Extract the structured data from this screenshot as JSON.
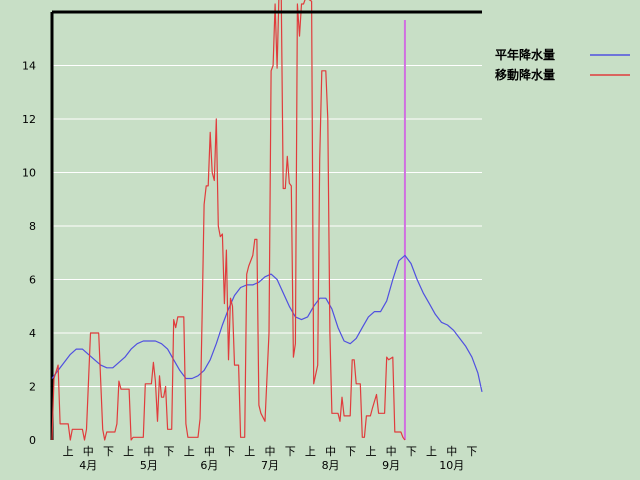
{
  "chart_data": {
    "type": "line",
    "title": "",
    "xlabel": "",
    "ylabel": "",
    "ylim": [
      0,
      16
    ],
    "y_ticks": [
      "0",
      "2",
      "4",
      "6",
      "8",
      "10",
      "12",
      "14"
    ],
    "y_tick_values": [
      0,
      2,
      4,
      6,
      8,
      10,
      12,
      14
    ],
    "grid": true,
    "legend_position": "top-right",
    "x_period_ticks": [
      "上",
      "中",
      "下",
      "上",
      "中",
      "下",
      "上",
      "中",
      "下",
      "上",
      "中",
      "下",
      "上",
      "中",
      "下",
      "上",
      "中",
      "下",
      "上",
      "中",
      "下"
    ],
    "x_month_labels": [
      "4月",
      "5月",
      "6月",
      "7月",
      "8月",
      "9月",
      "10月"
    ],
    "x_range_days": [
      0,
      212
    ],
    "series": [
      {
        "name": "平年降水量",
        "color": "#5050e0",
        "points": [
          [
            0,
            2.3
          ],
          [
            3,
            2.6
          ],
          [
            6,
            2.9
          ],
          [
            9,
            3.2
          ],
          [
            12,
            3.4
          ],
          [
            15,
            3.4
          ],
          [
            18,
            3.2
          ],
          [
            21,
            3.0
          ],
          [
            24,
            2.8
          ],
          [
            27,
            2.7
          ],
          [
            30,
            2.7
          ],
          [
            33,
            2.9
          ],
          [
            36,
            3.1
          ],
          [
            39,
            3.4
          ],
          [
            42,
            3.6
          ],
          [
            45,
            3.7
          ],
          [
            48,
            3.7
          ],
          [
            51,
            3.7
          ],
          [
            54,
            3.6
          ],
          [
            57,
            3.4
          ],
          [
            60,
            3.0
          ],
          [
            63,
            2.6
          ],
          [
            66,
            2.3
          ],
          [
            69,
            2.3
          ],
          [
            72,
            2.4
          ],
          [
            75,
            2.6
          ],
          [
            78,
            3.0
          ],
          [
            81,
            3.6
          ],
          [
            84,
            4.3
          ],
          [
            87,
            4.9
          ],
          [
            90,
            5.4
          ],
          [
            93,
            5.7
          ],
          [
            96,
            5.8
          ],
          [
            99,
            5.8
          ],
          [
            102,
            5.9
          ],
          [
            105,
            6.1
          ],
          [
            108,
            6.2
          ],
          [
            111,
            6.0
          ],
          [
            114,
            5.5
          ],
          [
            117,
            5.0
          ],
          [
            120,
            4.6
          ],
          [
            123,
            4.5
          ],
          [
            126,
            4.6
          ],
          [
            129,
            5.0
          ],
          [
            132,
            5.3
          ],
          [
            135,
            5.3
          ],
          [
            138,
            4.9
          ],
          [
            141,
            4.2
          ],
          [
            144,
            3.7
          ],
          [
            147,
            3.6
          ],
          [
            150,
            3.8
          ],
          [
            153,
            4.2
          ],
          [
            156,
            4.6
          ],
          [
            159,
            4.8
          ],
          [
            162,
            4.8
          ],
          [
            165,
            5.2
          ],
          [
            168,
            6.0
          ],
          [
            171,
            6.7
          ],
          [
            174,
            6.9
          ],
          [
            177,
            6.6
          ],
          [
            180,
            6.0
          ],
          [
            183,
            5.5
          ],
          [
            186,
            5.1
          ],
          [
            189,
            4.7
          ],
          [
            192,
            4.4
          ],
          [
            195,
            4.3
          ],
          [
            198,
            4.1
          ],
          [
            201,
            3.8
          ],
          [
            204,
            3.5
          ],
          [
            207,
            3.1
          ],
          [
            210,
            2.5
          ],
          [
            212,
            1.8
          ]
        ]
      },
      {
        "name": "移動降水量",
        "color": "#e03c3c",
        "points": [
          [
            0,
            0.0
          ],
          [
            1,
            2.3
          ],
          [
            3,
            2.8
          ],
          [
            4,
            0.6
          ],
          [
            8,
            0.6
          ],
          [
            9,
            0.0
          ],
          [
            10,
            0.4
          ],
          [
            15,
            0.4
          ],
          [
            16,
            0.0
          ],
          [
            17,
            0.4
          ],
          [
            19,
            4.0
          ],
          [
            23,
            4.0
          ],
          [
            25,
            0.4
          ],
          [
            26,
            0.0
          ],
          [
            27,
            0.3
          ],
          [
            31,
            0.3
          ],
          [
            32,
            0.6
          ],
          [
            33,
            2.2
          ],
          [
            34,
            1.9
          ],
          [
            38,
            1.9
          ],
          [
            39,
            0.0
          ],
          [
            40,
            0.1
          ],
          [
            45,
            0.1
          ],
          [
            46,
            2.1
          ],
          [
            49,
            2.1
          ],
          [
            50,
            2.9
          ],
          [
            51,
            2.2
          ],
          [
            52,
            0.7
          ],
          [
            53,
            2.4
          ],
          [
            54,
            1.6
          ],
          [
            55,
            1.6
          ],
          [
            56,
            2.0
          ],
          [
            57,
            0.4
          ],
          [
            59,
            0.4
          ],
          [
            60,
            4.5
          ],
          [
            61,
            4.2
          ],
          [
            62,
            4.6
          ],
          [
            65,
            4.6
          ],
          [
            66,
            0.6
          ],
          [
            67,
            0.1
          ],
          [
            72,
            0.1
          ],
          [
            73,
            0.8
          ],
          [
            74,
            4.6
          ],
          [
            75,
            8.8
          ],
          [
            76,
            9.5
          ],
          [
            77,
            9.5
          ],
          [
            78,
            11.5
          ],
          [
            79,
            10.0
          ],
          [
            80,
            9.7
          ],
          [
            81,
            12.0
          ],
          [
            82,
            8.0
          ],
          [
            83,
            7.6
          ],
          [
            84,
            7.7
          ],
          [
            85,
            5.1
          ],
          [
            86,
            7.1
          ],
          [
            87,
            3.0
          ],
          [
            88,
            5.3
          ],
          [
            89,
            5.0
          ],
          [
            90,
            2.8
          ],
          [
            92,
            2.8
          ],
          [
            93,
            0.1
          ],
          [
            95,
            0.1
          ],
          [
            96,
            6.2
          ],
          [
            97,
            6.5
          ],
          [
            99,
            6.9
          ],
          [
            100,
            7.5
          ],
          [
            101,
            7.5
          ],
          [
            102,
            1.3
          ],
          [
            103,
            1.0
          ],
          [
            105,
            0.7
          ],
          [
            107,
            4.0
          ],
          [
            108,
            13.8
          ],
          [
            109,
            14.0
          ],
          [
            110,
            16.3
          ],
          [
            111,
            13.9
          ],
          [
            112,
            17.5
          ],
          [
            113,
            16.8
          ],
          [
            114,
            9.4
          ],
          [
            115,
            9.4
          ],
          [
            116,
            10.6
          ],
          [
            117,
            9.6
          ],
          [
            118,
            9.5
          ],
          [
            119,
            3.1
          ],
          [
            120,
            3.6
          ],
          [
            121,
            16.3
          ],
          [
            122,
            15.1
          ],
          [
            123,
            16.3
          ],
          [
            124,
            16.3
          ],
          [
            125,
            16.5
          ],
          [
            126,
            16.5
          ],
          [
            128,
            16.4
          ],
          [
            129,
            2.1
          ],
          [
            131,
            2.8
          ],
          [
            132,
            10.5
          ],
          [
            133,
            13.8
          ],
          [
            135,
            13.8
          ],
          [
            136,
            12.0
          ],
          [
            137,
            4.0
          ],
          [
            138,
            1.0
          ],
          [
            141,
            1.0
          ],
          [
            142,
            0.7
          ],
          [
            143,
            1.6
          ],
          [
            144,
            0.9
          ],
          [
            147,
            0.9
          ],
          [
            148,
            3.0
          ],
          [
            149,
            3.0
          ],
          [
            150,
            2.1
          ],
          [
            152,
            2.1
          ],
          [
            153,
            0.1
          ],
          [
            154,
            0.1
          ],
          [
            155,
            0.9
          ],
          [
            157,
            0.9
          ],
          [
            158,
            1.2
          ],
          [
            160,
            1.7
          ],
          [
            161,
            1.0
          ],
          [
            164,
            1.0
          ],
          [
            165,
            3.1
          ],
          [
            166,
            3.0
          ],
          [
            168,
            3.1
          ],
          [
            169,
            0.3
          ],
          [
            172,
            0.3
          ],
          [
            173,
            0.1
          ],
          [
            174,
            0.0
          ]
        ]
      }
    ],
    "end_marker_color": "#d070e0",
    "end_marker_day": 174
  }
}
